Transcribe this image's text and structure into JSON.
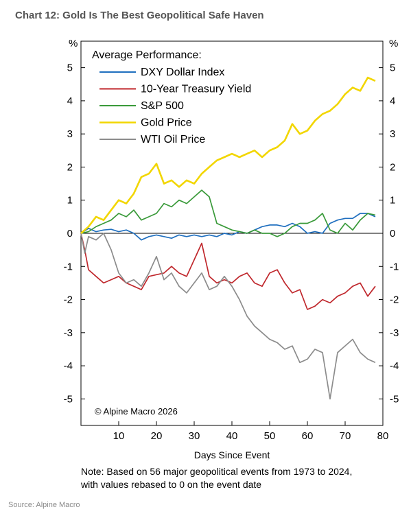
{
  "title": "Chart 12: Gold Is The Best Geopolitical Safe Haven",
  "note_line1": "Note: Based on 56 major geopolitical events from 1973 to 2024,",
  "note_line2": "with values rebased to 0 on the event date",
  "source": "Source: Alpine Macro",
  "copyright": "© Alpine Macro 2026",
  "colors": {
    "dxy": "#1f6fbf",
    "treasury": "#c0282d",
    "sp500": "#3a9a3a",
    "gold": "#f2d600",
    "oil": "#8c8c8c"
  },
  "chart_data": {
    "type": "line",
    "title": "Chart 12: Gold Is The Best Geopolitical Safe Haven",
    "xlabel": "Days Since Event",
    "ylabel_left": "%",
    "ylabel_right": "%",
    "xlim": [
      0,
      80
    ],
    "ylim": [
      -5.8,
      5.8
    ],
    "xticks": [
      10,
      20,
      30,
      40,
      50,
      60,
      70,
      80
    ],
    "yticks": [
      5,
      4,
      3,
      2,
      1,
      0,
      -1,
      -2,
      -3,
      -4,
      -5
    ],
    "legend_title": "Average Performance:",
    "legend_position": "top-left",
    "grid": false,
    "series": [
      {
        "name": "DXY Dollar Index",
        "color": "#1f6fbf",
        "x": [
          0,
          2,
          4,
          6,
          8,
          10,
          12,
          14,
          16,
          18,
          20,
          22,
          24,
          26,
          28,
          30,
          32,
          34,
          36,
          38,
          40,
          42,
          44,
          46,
          48,
          50,
          52,
          54,
          56,
          58,
          60,
          62,
          64,
          66,
          68,
          70,
          72,
          74,
          76,
          78
        ],
        "y": [
          0,
          0.15,
          0.05,
          0.1,
          0.12,
          0.05,
          0.1,
          0.0,
          -0.2,
          -0.1,
          -0.05,
          -0.1,
          -0.15,
          -0.05,
          -0.1,
          -0.05,
          -0.1,
          -0.05,
          -0.1,
          0.0,
          -0.05,
          0.05,
          0.0,
          0.1,
          0.2,
          0.25,
          0.25,
          0.2,
          0.3,
          0.2,
          0.0,
          0.05,
          0.0,
          0.3,
          0.4,
          0.45,
          0.45,
          0.6,
          0.6,
          0.5
        ]
      },
      {
        "name": "10-Year Treasury Yield",
        "color": "#c0282d",
        "x": [
          0,
          1,
          2,
          4,
          6,
          8,
          10,
          12,
          14,
          16,
          18,
          20,
          22,
          24,
          26,
          28,
          30,
          32,
          34,
          36,
          38,
          40,
          42,
          44,
          46,
          48,
          50,
          52,
          54,
          56,
          58,
          60,
          62,
          64,
          66,
          68,
          70,
          72,
          74,
          76,
          78
        ],
        "y": [
          0,
          -0.5,
          -1.1,
          -1.3,
          -1.5,
          -1.4,
          -1.3,
          -1.5,
          -1.6,
          -1.7,
          -1.3,
          -1.25,
          -1.2,
          -1.0,
          -1.2,
          -1.3,
          -0.8,
          -0.3,
          -1.3,
          -1.5,
          -1.4,
          -1.5,
          -1.3,
          -1.2,
          -1.5,
          -1.6,
          -1.2,
          -1.1,
          -1.5,
          -1.8,
          -1.7,
          -2.3,
          -2.2,
          -2.0,
          -2.1,
          -1.9,
          -1.8,
          -1.6,
          -1.5,
          -1.9,
          -1.6
        ]
      },
      {
        "name": "S&P 500",
        "color": "#3a9a3a",
        "x": [
          0,
          2,
          4,
          6,
          8,
          10,
          12,
          14,
          16,
          18,
          20,
          22,
          24,
          26,
          28,
          30,
          32,
          34,
          36,
          38,
          40,
          42,
          44,
          46,
          48,
          50,
          52,
          54,
          56,
          58,
          60,
          62,
          64,
          66,
          68,
          70,
          72,
          74,
          76,
          78
        ],
        "y": [
          0,
          0.05,
          0.2,
          0.3,
          0.4,
          0.6,
          0.5,
          0.7,
          0.4,
          0.5,
          0.6,
          0.9,
          0.8,
          1.0,
          0.9,
          1.1,
          1.3,
          1.1,
          0.3,
          0.2,
          0.1,
          0.05,
          0.0,
          0.1,
          0.0,
          0.0,
          -0.1,
          0.0,
          0.2,
          0.3,
          0.3,
          0.4,
          0.6,
          0.1,
          0.0,
          0.3,
          0.1,
          0.4,
          0.6,
          0.55
        ]
      },
      {
        "name": "Gold Price",
        "color": "#f2d600",
        "x": [
          0,
          2,
          4,
          6,
          8,
          10,
          12,
          14,
          16,
          18,
          20,
          22,
          24,
          26,
          28,
          30,
          32,
          34,
          36,
          38,
          40,
          42,
          44,
          46,
          48,
          50,
          52,
          54,
          56,
          58,
          60,
          62,
          64,
          66,
          68,
          70,
          72,
          74,
          76,
          78
        ],
        "y": [
          0,
          0.2,
          0.5,
          0.4,
          0.7,
          1.0,
          0.9,
          1.2,
          1.7,
          1.8,
          2.1,
          1.5,
          1.6,
          1.4,
          1.6,
          1.5,
          1.8,
          2.0,
          2.2,
          2.3,
          2.4,
          2.3,
          2.4,
          2.5,
          2.3,
          2.5,
          2.6,
          2.8,
          3.3,
          3.0,
          3.1,
          3.4,
          3.6,
          3.7,
          3.9,
          4.2,
          4.4,
          4.3,
          4.7,
          4.6
        ]
      },
      {
        "name": "WTI Oil Price",
        "color": "#8c8c8c",
        "x": [
          0,
          1,
          2,
          4,
          6,
          8,
          10,
          12,
          14,
          16,
          18,
          20,
          22,
          24,
          26,
          28,
          30,
          32,
          34,
          36,
          38,
          40,
          42,
          44,
          46,
          48,
          50,
          52,
          54,
          56,
          58,
          60,
          62,
          64,
          66,
          68,
          70,
          72,
          74,
          76,
          78
        ],
        "y": [
          0,
          -0.6,
          -0.1,
          -0.2,
          0.0,
          -0.5,
          -1.2,
          -1.5,
          -1.4,
          -1.6,
          -1.2,
          -0.7,
          -1.4,
          -1.2,
          -1.6,
          -1.8,
          -1.5,
          -1.2,
          -1.7,
          -1.6,
          -1.3,
          -1.6,
          -2.0,
          -2.5,
          -2.8,
          -3.0,
          -3.2,
          -3.3,
          -3.5,
          -3.4,
          -3.9,
          -3.8,
          -3.5,
          -3.6,
          -5.0,
          -3.6,
          -3.4,
          -3.2,
          -3.6,
          -3.8,
          -3.9
        ]
      }
    ]
  }
}
